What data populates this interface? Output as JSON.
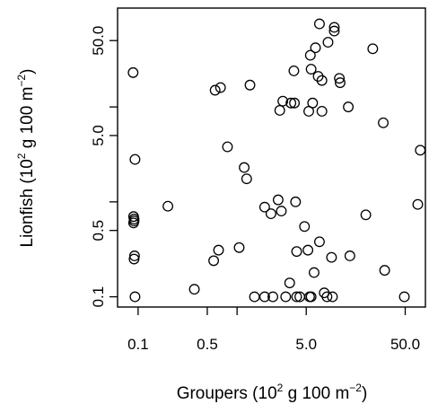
{
  "chart_data": {
    "type": "scatter",
    "xlabel": {
      "main": "Groupers (10",
      "sup1": "2",
      "mid": " g 100 m",
      "sup2": "−2",
      "end": ")"
    },
    "ylabel": {
      "main": "Lionfish (10",
      "sup1": "2",
      "mid": " g 100 m",
      "sup2": "−2",
      "end": ")"
    },
    "x_scale": "log",
    "y_scale": "log",
    "xlim": [
      0.062,
      80
    ],
    "ylim": [
      0.078,
      110
    ],
    "x_ticks": [
      {
        "value": 0.1,
        "label": "0.1"
      },
      {
        "value": 0.5,
        "label": "0.5"
      },
      {
        "value": 5,
        "label": "5.0"
      },
      {
        "value": 50,
        "label": "50.0"
      }
    ],
    "x_minor_ticks": [
      1
    ],
    "y_ticks": [
      {
        "value": 0.1,
        "label": "0.1"
      },
      {
        "value": 0.5,
        "label": "0.5"
      },
      {
        "value": 5,
        "label": "5.0"
      },
      {
        "value": 50,
        "label": "50.0"
      }
    ],
    "y_minor_ticks": [
      1,
      10
    ],
    "grid": false,
    "points": [
      {
        "x": 0.093,
        "y": 0.1
      },
      {
        "x": 0.091,
        "y": 0.25
      },
      {
        "x": 0.092,
        "y": 0.27
      },
      {
        "x": 0.09,
        "y": 0.6
      },
      {
        "x": 0.091,
        "y": 0.63
      },
      {
        "x": 0.091,
        "y": 0.66
      },
      {
        "x": 0.09,
        "y": 0.7
      },
      {
        "x": 0.093,
        "y": 2.8
      },
      {
        "x": 0.089,
        "y": 23
      },
      {
        "x": 0.2,
        "y": 0.9
      },
      {
        "x": 0.37,
        "y": 0.12
      },
      {
        "x": 0.58,
        "y": 0.24
      },
      {
        "x": 0.65,
        "y": 0.31
      },
      {
        "x": 0.8,
        "y": 3.8
      },
      {
        "x": 0.6,
        "y": 15
      },
      {
        "x": 0.68,
        "y": 16
      },
      {
        "x": 1.05,
        "y": 0.33
      },
      {
        "x": 1.18,
        "y": 2.3
      },
      {
        "x": 1.25,
        "y": 1.75
      },
      {
        "x": 1.35,
        "y": 17
      },
      {
        "x": 1.5,
        "y": 0.1
      },
      {
        "x": 1.9,
        "y": 0.1
      },
      {
        "x": 2.3,
        "y": 0.1
      },
      {
        "x": 1.9,
        "y": 0.88
      },
      {
        "x": 2.2,
        "y": 0.75
      },
      {
        "x": 2.6,
        "y": 1.05
      },
      {
        "x": 2.8,
        "y": 0.8
      },
      {
        "x": 2.7,
        "y": 9.2
      },
      {
        "x": 2.9,
        "y": 11.5
      },
      {
        "x": 3.1,
        "y": 0.1
      },
      {
        "x": 3.4,
        "y": 0.14
      },
      {
        "x": 3.5,
        "y": 11
      },
      {
        "x": 3.8,
        "y": 11
      },
      {
        "x": 3.75,
        "y": 24
      },
      {
        "x": 3.9,
        "y": 1
      },
      {
        "x": 4.0,
        "y": 0.3
      },
      {
        "x": 4.0,
        "y": 0.1
      },
      {
        "x": 4.3,
        "y": 0.1
      },
      {
        "x": 4.8,
        "y": 0.55
      },
      {
        "x": 5.2,
        "y": 0.31
      },
      {
        "x": 5.4,
        "y": 0.1
      },
      {
        "x": 5.6,
        "y": 0.1
      },
      {
        "x": 5.3,
        "y": 9
      },
      {
        "x": 5.8,
        "y": 11
      },
      {
        "x": 5.6,
        "y": 25
      },
      {
        "x": 5.5,
        "y": 35
      },
      {
        "x": 6.2,
        "y": 42
      },
      {
        "x": 6.0,
        "y": 0.18
      },
      {
        "x": 6.8,
        "y": 0.38
      },
      {
        "x": 7.2,
        "y": 9
      },
      {
        "x": 7.2,
        "y": 19
      },
      {
        "x": 6.6,
        "y": 21
      },
      {
        "x": 6.8,
        "y": 75
      },
      {
        "x": 7.6,
        "y": 0.11
      },
      {
        "x": 8.1,
        "y": 0.1
      },
      {
        "x": 8.3,
        "y": 48
      },
      {
        "x": 9.2,
        "y": 0.1
      },
      {
        "x": 9.0,
        "y": 0.26
      },
      {
        "x": 10.8,
        "y": 20
      },
      {
        "x": 11.0,
        "y": 18
      },
      {
        "x": 9.6,
        "y": 63
      },
      {
        "x": 9.6,
        "y": 69
      },
      {
        "x": 13.3,
        "y": 10
      },
      {
        "x": 13.8,
        "y": 0.27
      },
      {
        "x": 20,
        "y": 0.73
      },
      {
        "x": 23.5,
        "y": 41
      },
      {
        "x": 31,
        "y": 0.19
      },
      {
        "x": 30,
        "y": 6.8
      },
      {
        "x": 49,
        "y": 0.1
      },
      {
        "x": 67,
        "y": 0.94
      },
      {
        "x": 71,
        "y": 3.5
      }
    ]
  }
}
